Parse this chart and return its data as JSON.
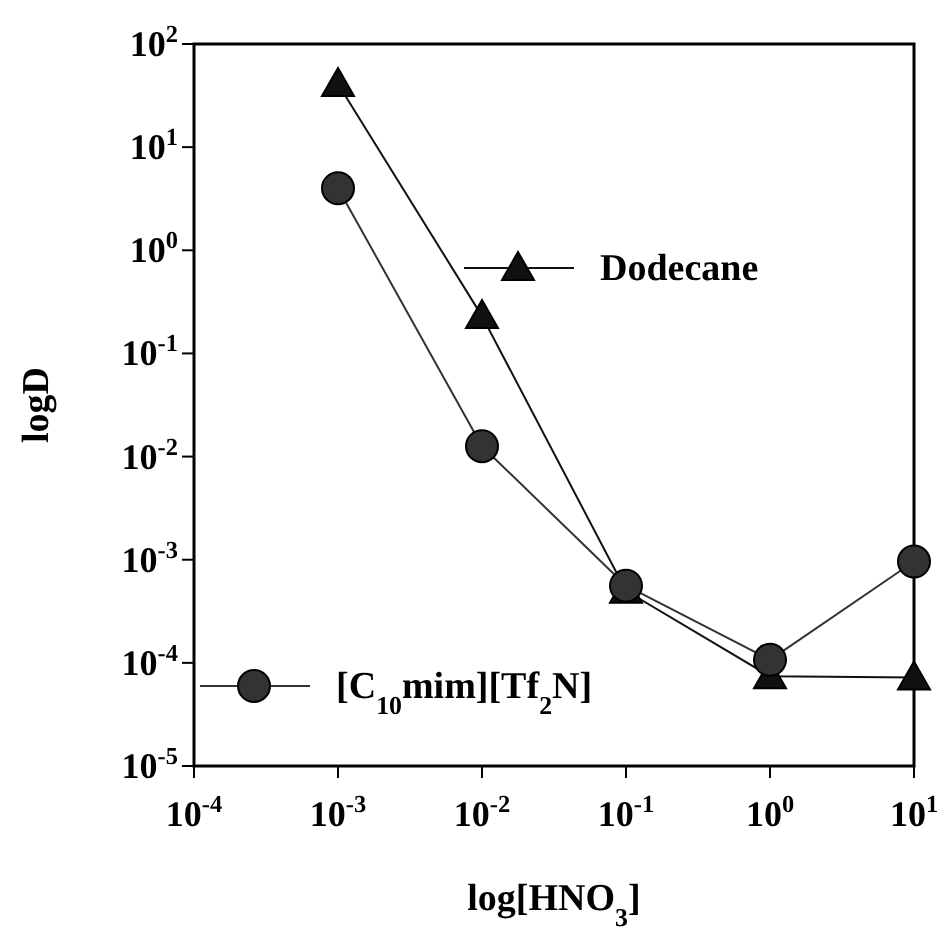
{
  "chart_data": {
    "type": "line",
    "xlabel": "log[HNO$_{3}$]",
    "ylabel": "logD",
    "log": "xy",
    "line_style": "solid",
    "legend": "bottom left",
    "grid": false,
    "xlim": [
      0.0001,
      10
    ],
    "xticks": [
      {
        "value": 0.0001,
        "label": "10$^{-4}$"
      },
      {
        "value": 0.001,
        "label": "10$^{-3}$"
      },
      {
        "value": 0.01,
        "label": "10$^{-2}$"
      },
      {
        "value": 0.1,
        "label": "10$^{-1}$"
      },
      {
        "value": 1,
        "label": "10$^{0}$"
      },
      {
        "value": 10,
        "label": "10$^{1}$"
      }
    ],
    "ylim": [
      1e-05,
      100
    ],
    "yticks": [
      {
        "value": 1e-05,
        "label": "10$^{-5}$"
      },
      {
        "value": 0.0001,
        "label": "10$^{-4}$"
      },
      {
        "value": 0.001,
        "label": "10$^{-3}$"
      },
      {
        "value": 0.01,
        "label": "10$^{-2}$"
      },
      {
        "value": 0.1,
        "label": "10$^{-1}$"
      },
      {
        "value": 1,
        "label": "10$^{0}$"
      },
      {
        "value": 10,
        "label": "10$^{1}$"
      },
      {
        "value": 100,
        "label": "10$^{2}$"
      }
    ],
    "x": [
      0.001,
      0.01,
      0.1,
      1,
      10
    ],
    "series": [
      {
        "name": "Dodecane",
        "color": "#111111",
        "marker": "triangle",
        "values": [
          41,
          0.23,
          0.0005,
          7.4e-05,
          7.2e-05
        ]
      },
      {
        "name": "[C$_{10}$mim][Tf$_{2}$N]",
        "color": "#333333",
        "marker": "circle",
        "values": [
          4,
          0.0126,
          0.00056,
          0.000107,
          0.00096
        ]
      }
    ]
  }
}
